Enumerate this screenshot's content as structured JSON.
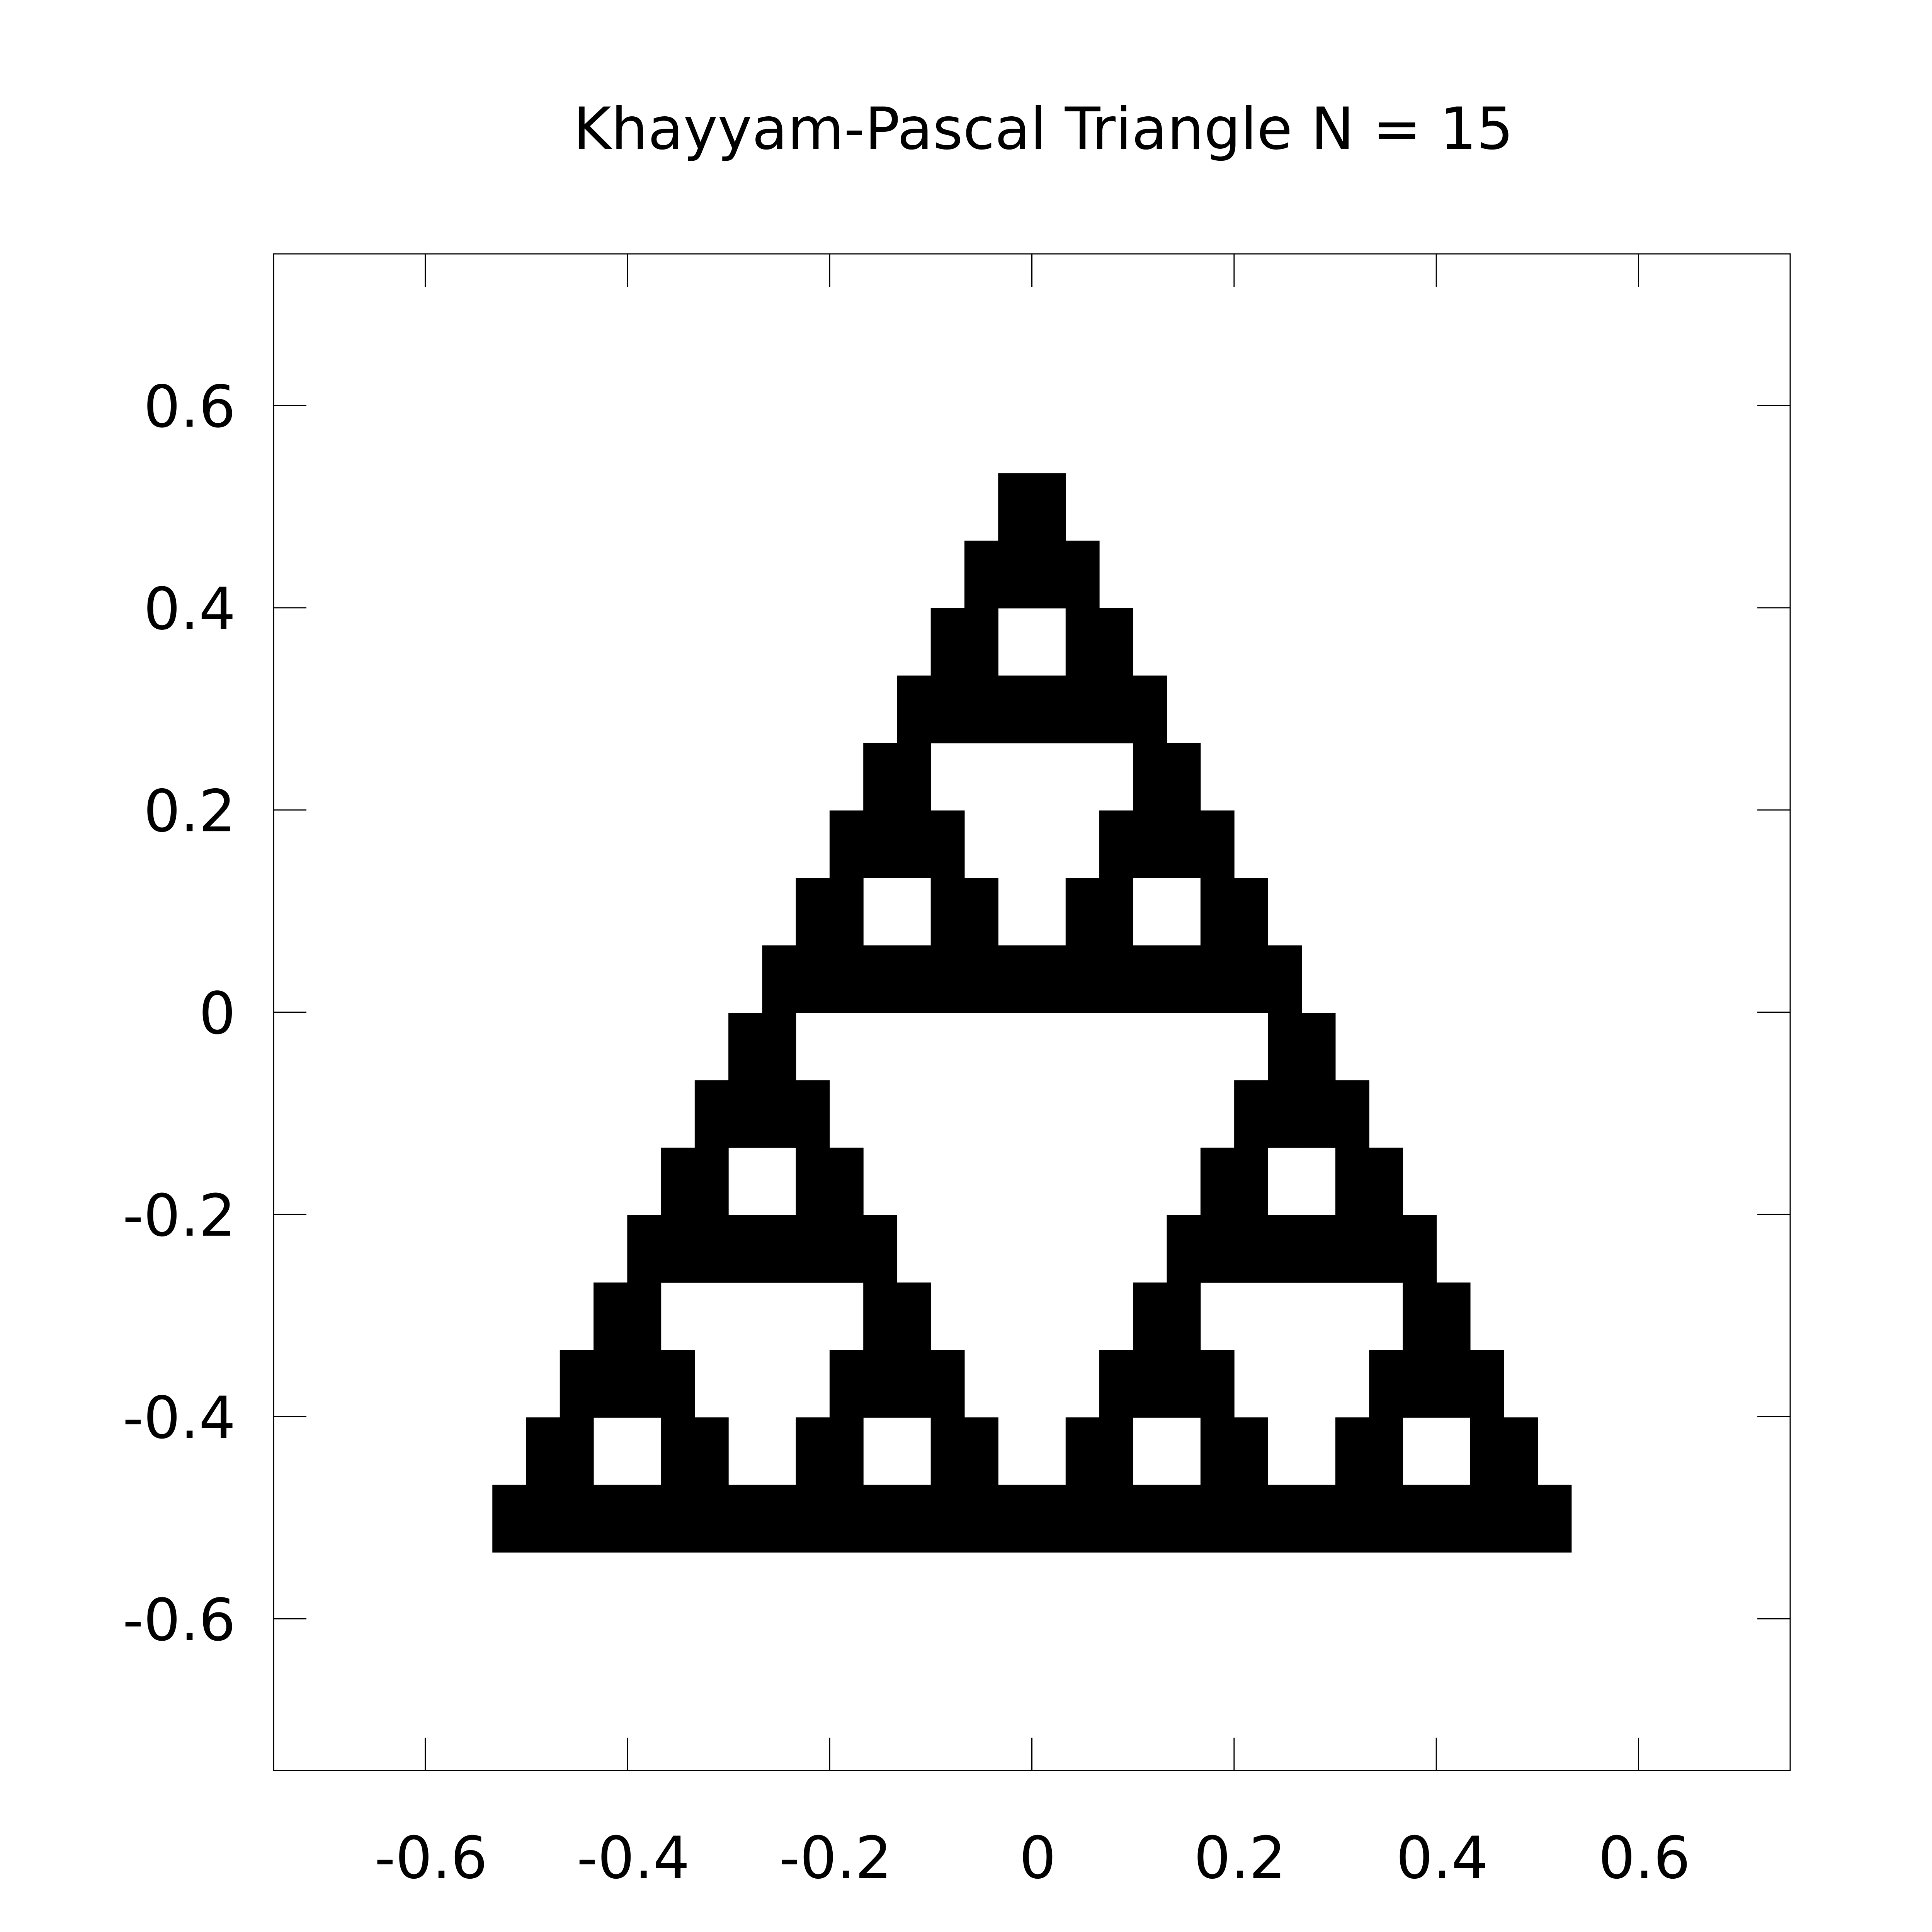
{
  "chart_data": {
    "type": "heatmap",
    "title": "Khayyam-Pascal Triangle N = 15",
    "xlabel": "",
    "ylabel": "",
    "xlim": [
      -0.75,
      0.75
    ],
    "ylim": [
      -0.75,
      0.75
    ],
    "xticks": [
      -0.6,
      -0.4,
      -0.2,
      0,
      0.2,
      0.4,
      0.6
    ],
    "yticks": [
      -0.6,
      -0.4,
      -0.2,
      0,
      0.2,
      0.4,
      0.6
    ],
    "xtick_labels": [
      "-0.6",
      "-0.4",
      "-0.2",
      "0",
      "0.2",
      "0.4",
      "0.6"
    ],
    "ytick_labels": [
      "-0.6",
      "-0.4",
      "-0.2",
      "0",
      "0.2",
      "0.4",
      "0.6"
    ],
    "grid": false,
    "rows": 16,
    "cell_size": 0.0667,
    "x_min": -0.533,
    "y_top": 0.533,
    "rule": "cell (row n, position k) is filled when C(n,k) is odd",
    "fill_color": "#000000",
    "background_color": "#ffffff"
  }
}
